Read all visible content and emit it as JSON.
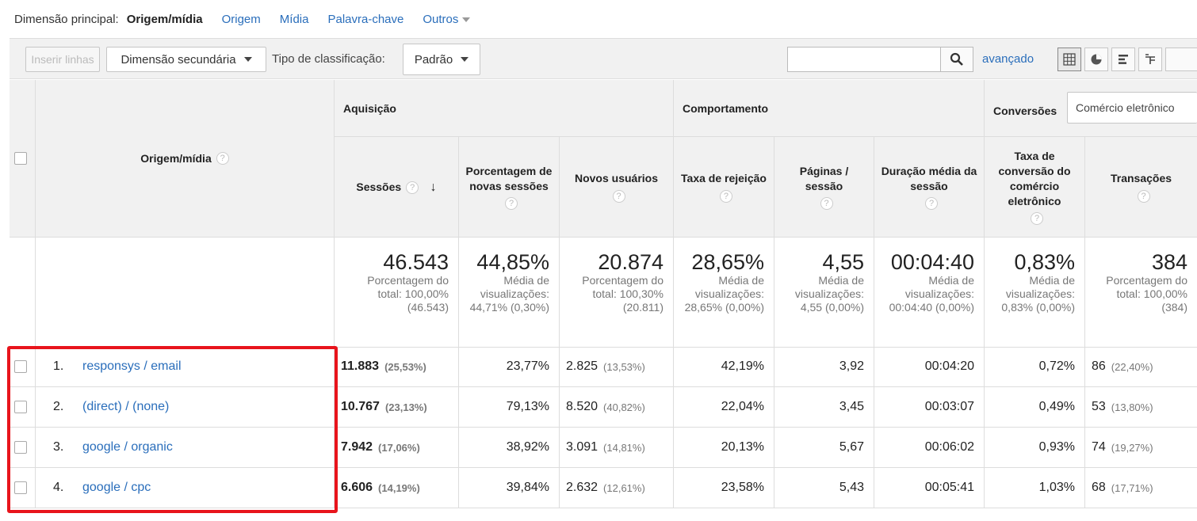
{
  "dimension_bar": {
    "label": "Dimensão principal:",
    "current": "Origem/mídia",
    "links": [
      "Origem",
      "Mídia",
      "Palavra-chave",
      "Outros"
    ]
  },
  "toolbar": {
    "insert_rows": "Inserir linhas",
    "secondary_dimension": "Dimensão secundária",
    "sort_type_label": "Tipo de classificação:",
    "sort_type_value": "Padrão",
    "search_value": "",
    "advanced": "avançado",
    "views": [
      "table-view-icon",
      "pie-view-icon",
      "bar-view-icon",
      "pivot-view-icon"
    ]
  },
  "table": {
    "dimension_header": "Origem/mídia",
    "groups": {
      "acquisition": "Aquisição",
      "behavior": "Comportamento",
      "conversions": "Conversões",
      "conversions_select": "Comércio eletrônico"
    },
    "columns": [
      {
        "label": "Sessões"
      },
      {
        "label": "Porcentagem de novas sessões"
      },
      {
        "label": "Novos usuários"
      },
      {
        "label": "Taxa de rejeição"
      },
      {
        "label": "Páginas / sessão"
      },
      {
        "label": "Duração média da sessão"
      },
      {
        "label": "Taxa de conversão do comércio eletrônico"
      },
      {
        "label": "Transações"
      }
    ],
    "totals": [
      {
        "value": "46.543",
        "note": "Porcentagem do total: 100,00% (46.543)"
      },
      {
        "value": "44,85%",
        "note": "Média de visualizações: 44,71% (0,30%)"
      },
      {
        "value": "20.874",
        "note": "Porcentagem do total: 100,30% (20.811)"
      },
      {
        "value": "28,65%",
        "note": "Média de visualizações: 28,65% (0,00%)"
      },
      {
        "value": "4,55",
        "note": "Média de visualizações: 4,55 (0,00%)"
      },
      {
        "value": "00:04:40",
        "note": "Média de visualizações: 00:04:40 (0,00%)"
      },
      {
        "value": "0,83%",
        "note": "Média de visualizações: 0,83% (0,00%)"
      },
      {
        "value": "384",
        "note": "Porcentagem do total: 100,00% (384)"
      }
    ],
    "rows": [
      {
        "index": "1.",
        "source": "responsys / email",
        "sessions": "11.883",
        "sessions_pct": "(25,53%)",
        "new_sessions_pct": "23,77%",
        "new_users": "2.825",
        "new_users_pct": "(13,53%)",
        "bounce": "42,19%",
        "pages": "3,92",
        "duration": "00:04:20",
        "conv_rate": "0,72%",
        "transactions": "86",
        "transactions_pct": "(22,40%)"
      },
      {
        "index": "2.",
        "source": "(direct) / (none)",
        "sessions": "10.767",
        "sessions_pct": "(23,13%)",
        "new_sessions_pct": "79,13%",
        "new_users": "8.520",
        "new_users_pct": "(40,82%)",
        "bounce": "22,04%",
        "pages": "3,45",
        "duration": "00:03:07",
        "conv_rate": "0,49%",
        "transactions": "53",
        "transactions_pct": "(13,80%)"
      },
      {
        "index": "3.",
        "source": "google / organic",
        "sessions": "7.942",
        "sessions_pct": "(17,06%)",
        "new_sessions_pct": "38,92%",
        "new_users": "3.091",
        "new_users_pct": "(14,81%)",
        "bounce": "20,13%",
        "pages": "5,67",
        "duration": "00:06:02",
        "conv_rate": "0,93%",
        "transactions": "74",
        "transactions_pct": "(19,27%)"
      },
      {
        "index": "4.",
        "source": "google / cpc",
        "sessions": "6.606",
        "sessions_pct": "(14,19%)",
        "new_sessions_pct": "39,84%",
        "new_users": "2.632",
        "new_users_pct": "(12,61%)",
        "bounce": "23,58%",
        "pages": "5,43",
        "duration": "00:05:41",
        "conv_rate": "1,03%",
        "transactions": "68",
        "transactions_pct": "(17,71%)"
      }
    ]
  },
  "colors": {
    "link": "#2a6ebb",
    "highlight": "#e8141c",
    "header_bg": "#f1f1f1"
  }
}
